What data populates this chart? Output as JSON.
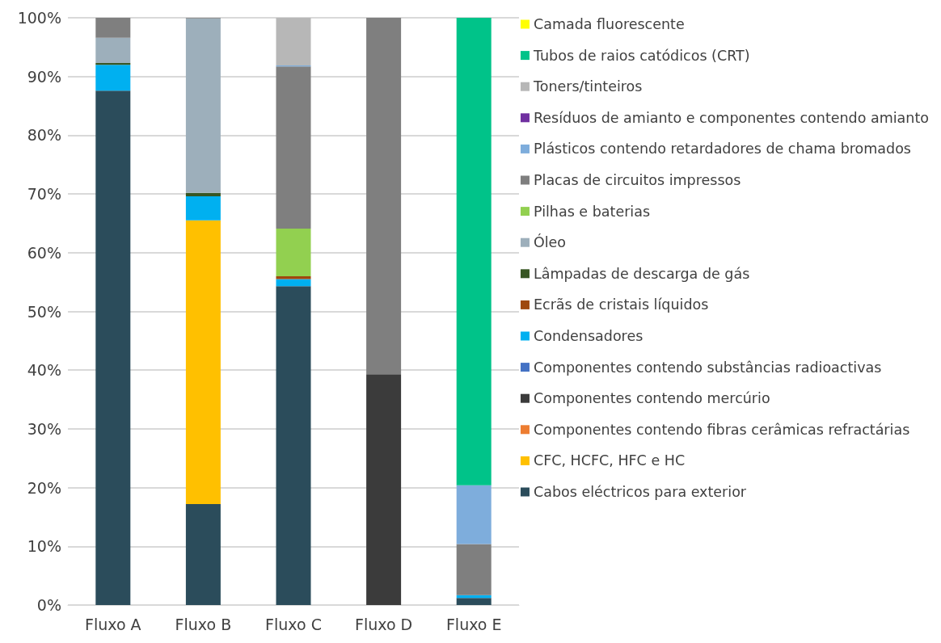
{
  "chart_data": {
    "type": "bar",
    "stacked": true,
    "categories": [
      "Fluxo A",
      "Fluxo B",
      "Fluxo C",
      "Fluxo D",
      "Fluxo E"
    ],
    "ylim": [
      0,
      100
    ],
    "yticks": [
      {
        "value": 0,
        "label": "0%"
      },
      {
        "value": 10,
        "label": "10%"
      },
      {
        "value": 20,
        "label": "20%"
      },
      {
        "value": 30,
        "label": "30%"
      },
      {
        "value": 40,
        "label": "40%"
      },
      {
        "value": 50,
        "label": "50%"
      },
      {
        "value": 60,
        "label": "60%"
      },
      {
        "value": 70,
        "label": "70%"
      },
      {
        "value": 80,
        "label": "80%"
      },
      {
        "value": 90,
        "label": "90%"
      },
      {
        "value": 100,
        "label": "100%"
      }
    ],
    "grid": "y",
    "legend": "right",
    "series": [
      {
        "name": "Cabos eléctricos para exterior",
        "color": "#2b4c5b",
        "values": [
          87.6,
          17.2,
          54.3,
          null,
          1.2
        ]
      },
      {
        "name": "CFC, HCFC, HFC e HC",
        "color": "#ffc000",
        "values": [
          null,
          48.3,
          null,
          null,
          null
        ]
      },
      {
        "name": "Componentes contendo fibras cerâmicas refractárias",
        "color": "#ed7d31",
        "values": [
          null,
          null,
          null,
          null,
          null
        ]
      },
      {
        "name": "Componentes contendo mercúrio",
        "color": "#3b3b3b",
        "values": [
          null,
          null,
          null,
          39.3,
          null
        ]
      },
      {
        "name": "Componentes contendo substâncias radioactivas",
        "color": "#4472c4",
        "values": [
          null,
          null,
          null,
          null,
          null
        ]
      },
      {
        "name": "Condensadores",
        "color": "#00b0f0",
        "values": [
          4.4,
          4.1,
          1.2,
          null,
          0.5
        ]
      },
      {
        "name": "Ecrãs de cristais líquidos",
        "color": "#9e480e",
        "values": [
          null,
          null,
          0.5,
          null,
          null
        ]
      },
      {
        "name": "Lâmpadas de descarga de gás",
        "color": "#375623",
        "values": [
          0.3,
          0.6,
          null,
          null,
          null
        ]
      },
      {
        "name": "Óleo",
        "color": "#9dafbb",
        "values": [
          4.3,
          29.7,
          null,
          null,
          null
        ]
      },
      {
        "name": "Pilhas e baterias",
        "color": "#92d050",
        "values": [
          null,
          null,
          8.1,
          null,
          null
        ]
      },
      {
        "name": "Placas de circuitos impressos",
        "color": "#7f7f7f",
        "values": [
          3.4,
          0.1,
          27.6,
          60.7,
          8.7
        ]
      },
      {
        "name": "Plásticos contendo retardadores de chama bromados",
        "color": "#7eaddc",
        "values": [
          null,
          null,
          0.2,
          null,
          10.0
        ]
      },
      {
        "name": "Resíduos de amianto e componentes contendo amianto",
        "color": "#7030a0",
        "values": [
          null,
          null,
          null,
          null,
          null
        ]
      },
      {
        "name": "Toners/tinteiros",
        "color": "#b7b7b7",
        "values": [
          null,
          null,
          8.1,
          null,
          null
        ]
      },
      {
        "name": "Tubos de raios catódicos (CRT)",
        "color": "#00c389",
        "values": [
          null,
          null,
          null,
          null,
          79.6
        ]
      },
      {
        "name": "Camada fluorescente",
        "color": "#ffff00",
        "values": [
          null,
          null,
          null,
          null,
          null
        ]
      }
    ]
  }
}
